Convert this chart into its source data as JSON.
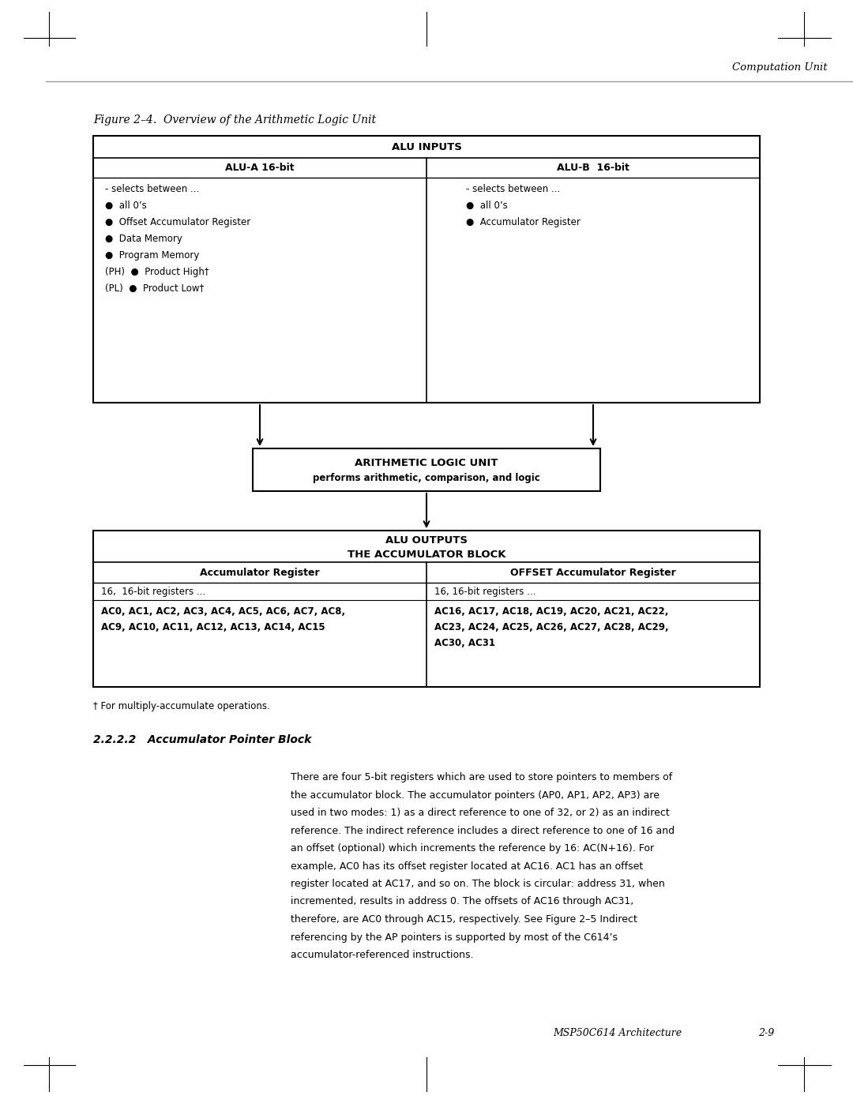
{
  "page_bg": "#ffffff",
  "header_text": "Computation Unit",
  "figure_title": "Figure 2–4.  Overview of the Arithmetic Logic Unit",
  "footer_text": "MSP50C614 Architecture",
  "footer_page": "2-9",
  "section_heading": "2.2.2.2   Accumulator Pointer Block",
  "body_text": "There are four 5-bit registers which are used to store pointers to members of\nthe accumulator block. The accumulator pointers (AP0, AP1, AP2, AP3) are\nused in two modes: 1) as a direct reference to one of 32, or 2) as an indirect\nreference. The indirect reference includes a direct reference to one of 16 and\nan offset (optional) which increments the reference by 16: AC(N+16). For\nexample, AC0 has its offset register located at AC16. AC1 has an offset\nregister located at AC17, and so on. The block is circular: address 31, when\nincremented, results in address 0. The offsets of AC16 through AC31,\ntherefore, are AC0 through AC15, respectively. See Figure 2–5 Indirect\nreferencing by the AP pointers is supported by most of the C614’s\naccumulator-referenced instructions.",
  "footnote_text": "† For multiply-accumulate operations.",
  "diagram": {
    "alu_inputs_label": "ALU INPUTS",
    "alu_a_label": "ALU-A 16-bit",
    "alu_b_label": "ALU-B  16-bit",
    "alu_a_items": [
      "- selects between ...",
      "●  all 0’s",
      "●  Offset Accumulator Register",
      "●  Data Memory",
      "●  Program Memory",
      "(PH)  ●  Product High†",
      "(PL)  ●  Product Low†"
    ],
    "alu_b_items": [
      "- selects between ...",
      "●  all 0’s",
      "●  Accumulator Register"
    ],
    "alu_box_label1": "ARITHMETIC LOGIC UNIT",
    "alu_box_label2": "performs arithmetic, comparison, and logic",
    "alu_outputs_label1": "ALU OUTPUTS",
    "alu_outputs_label2": "THE ACCUMULATOR BLOCK",
    "acc_reg_label": "Accumulator Register",
    "offset_acc_label": "OFFSET Accumulator Register",
    "acc_reg_sub": "16,  16-bit registers ...",
    "offset_acc_sub": "16, 16-bit registers ...",
    "acc_reg_detail": "AC0, AC1, AC2, AC3, AC4, AC5, AC6, AC7, AC8,\nAC9, AC10, AC11, AC12, AC13, AC14, AC15",
    "offset_acc_detail": "AC16, AC17, AC18, AC19, AC20, AC21, AC22,\nAC23, AC24, AC25, AC26, AC27, AC28, AC29,\nAC30, AC31"
  }
}
